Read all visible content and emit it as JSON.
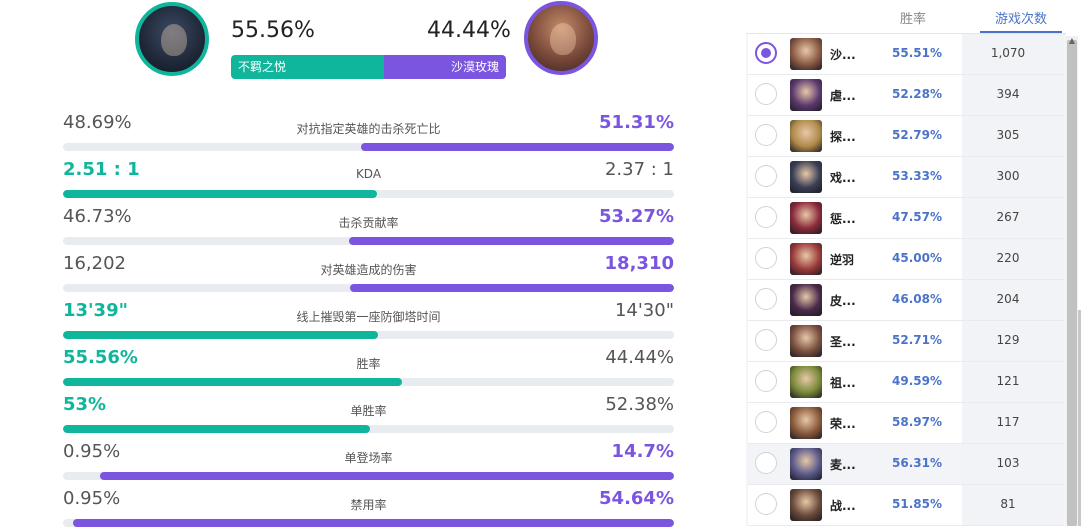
{
  "header": {
    "left_pct": "55.56%",
    "right_pct": "44.44%",
    "left_champion": "不羁之悦",
    "right_champion": "沙漠玫瑰",
    "left_share": 55.56
  },
  "stats": [
    {
      "left": "48.69%",
      "label": "对抗指定英雄的击杀死亡比",
      "right": "51.31%",
      "winner": "right",
      "fill": 51.31
    },
    {
      "left": "2.51 : 1",
      "label": "KDA",
      "right": "2.37 : 1",
      "winner": "left",
      "fill": 51.4
    },
    {
      "left": "46.73%",
      "label": "击杀贡献率",
      "right": "53.27%",
      "winner": "right",
      "fill": 53.27
    },
    {
      "left": "16,202",
      "label": "对英雄造成的伤害",
      "right": "18,310",
      "winner": "right",
      "fill": 53.0
    },
    {
      "left": "13'39\"",
      "label": "线上摧毁第一座防御塔时间",
      "right": "14'30\"",
      "winner": "left",
      "fill": 51.5
    },
    {
      "left": "55.56%",
      "label": "胜率",
      "right": "44.44%",
      "winner": "left",
      "fill": 55.56
    },
    {
      "left": "53%",
      "label": "单胜率",
      "right": "52.38%",
      "winner": "left",
      "fill": 50.3
    },
    {
      "left": "0.95%",
      "label": "单登场率",
      "right": "14.7%",
      "winner": "right",
      "fill": 93.9
    },
    {
      "left": "0.95%",
      "label": "禁用率",
      "right": "54.64%",
      "winner": "right",
      "fill": 98.3
    }
  ],
  "panel": {
    "col_winrate": "胜率",
    "col_games": "游戏次数",
    "rows": [
      {
        "name": "沙...",
        "winrate": "55.51%",
        "games": "1,070",
        "selected": true,
        "color": "#8a5a44"
      },
      {
        "name": "虐...",
        "winrate": "52.28%",
        "games": "394",
        "selected": false,
        "color": "#5b3a6e"
      },
      {
        "name": "探...",
        "winrate": "52.79%",
        "games": "305",
        "selected": false,
        "color": "#b08a4a"
      },
      {
        "name": "戏...",
        "winrate": "53.33%",
        "games": "300",
        "selected": false,
        "color": "#3a3f55"
      },
      {
        "name": "惩...",
        "winrate": "47.57%",
        "games": "267",
        "selected": false,
        "color": "#8a2a3a"
      },
      {
        "name": "逆羽",
        "winrate": "45.00%",
        "games": "220",
        "selected": false,
        "color": "#9a3a3a"
      },
      {
        "name": "皮...",
        "winrate": "46.08%",
        "games": "204",
        "selected": false,
        "color": "#4a2a4a"
      },
      {
        "name": "圣...",
        "winrate": "52.71%",
        "games": "129",
        "selected": false,
        "color": "#7a5040"
      },
      {
        "name": "祖...",
        "winrate": "49.59%",
        "games": "121",
        "selected": false,
        "color": "#7a8a3a"
      },
      {
        "name": "荣...",
        "winrate": "58.97%",
        "games": "117",
        "selected": false,
        "color": "#8a5a3a"
      },
      {
        "name": "麦...",
        "winrate": "56.31%",
        "games": "103",
        "selected": false,
        "color": "#5a5a8a"
      },
      {
        "name": "战...",
        "winrate": "51.85%",
        "games": "81",
        "selected": false,
        "color": "#6a4a3a"
      }
    ]
  },
  "colors": {
    "teal": "#10b69b",
    "purple": "#7b55e0",
    "blue": "#4b74c9"
  }
}
